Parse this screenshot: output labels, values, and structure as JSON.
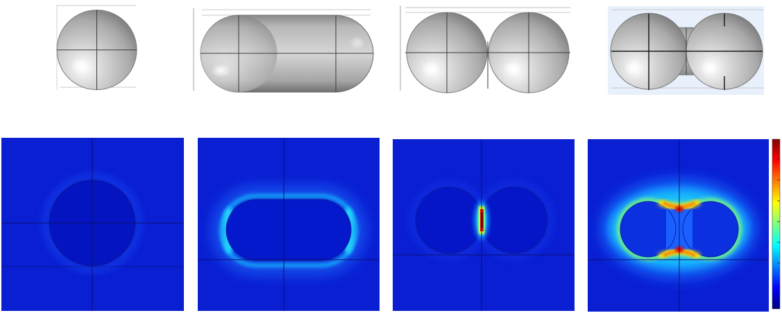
{
  "figure": {
    "geometries": [
      {
        "shape": "single-sphere"
      },
      {
        "shape": "capsule-nanorod"
      },
      {
        "shape": "touching-sphere-dimer"
      },
      {
        "shape": "bridged-sphere-dimer"
      }
    ],
    "field_maps": [
      {
        "shape": "single-sphere",
        "hotspot": "none"
      },
      {
        "shape": "capsule-nanorod",
        "hotspot": "ends"
      },
      {
        "shape": "touching-sphere-dimer",
        "hotspot": "gap"
      },
      {
        "shape": "bridged-sphere-dimer",
        "hotspot": "bridge-junctions"
      }
    ],
    "colorbar": {
      "colormap": "jet",
      "colors": [
        "#00007f",
        "#0000ff",
        "#00ffff",
        "#ffff00",
        "#ff0000",
        "#7f0000"
      ]
    },
    "colors": {
      "field_background": "#0a1ed2",
      "particle_fill": "#c8c8c8",
      "mesh_line": "#000000"
    }
  }
}
